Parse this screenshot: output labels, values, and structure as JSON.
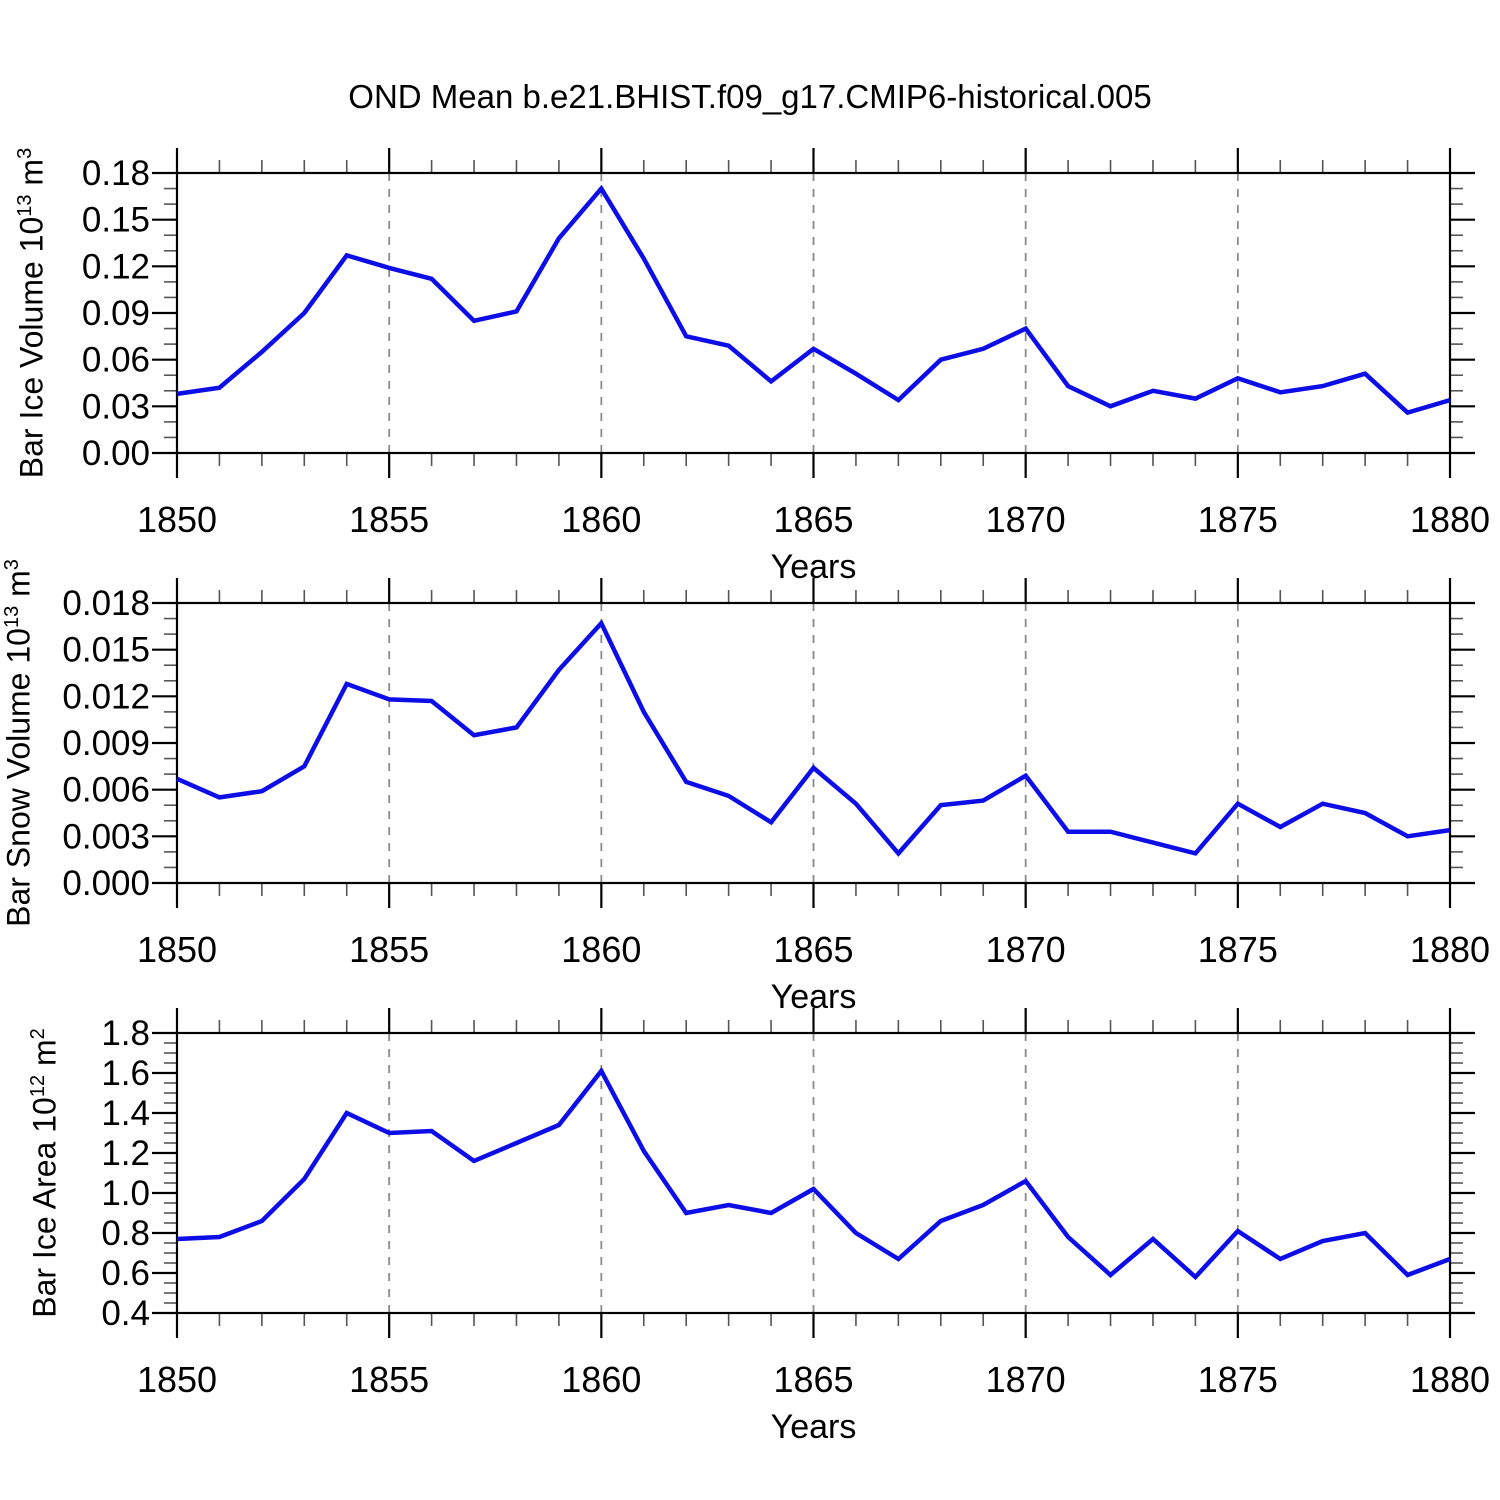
{
  "title": "OND Mean b.e21.BHIST.f09_g17.CMIP6-historical.005",
  "panels": [
    {
      "id": "ice-volume",
      "ylabel_prefix": "Bar Ice Volume 10",
      "ylabel_exp": "13",
      "ylabel_unit": " m",
      "ylabel_unit_exp": "3",
      "xlabel": "Years"
    },
    {
      "id": "snow-volume",
      "ylabel_prefix": "Bar Snow Volume 10",
      "ylabel_exp": "13",
      "ylabel_unit": " m",
      "ylabel_unit_exp": "3",
      "xlabel": "Years"
    },
    {
      "id": "ice-area",
      "ylabel_prefix": "Bar Ice Area 10",
      "ylabel_exp": "12",
      "ylabel_unit": " m",
      "ylabel_unit_exp": "2",
      "xlabel": "Years"
    }
  ],
  "colors": {
    "line": "#0d0de8",
    "grid": "#8a8a8a",
    "frame": "#000000",
    "major_tick": "#000000",
    "minor_tick": "#555555",
    "text": "#000000",
    "background": "#ffffff"
  },
  "chart_data": [
    {
      "type": "line",
      "id": "ice-volume",
      "ylabel": "Bar Ice Volume 10^13 m^3",
      "xlabel": "Years",
      "x_start": 1850,
      "x_end": 1880,
      "x_step": 1,
      "x_tick_years": [
        1850,
        1855,
        1860,
        1865,
        1870,
        1875,
        1880
      ],
      "x_tick_labels": [
        "1850",
        "1855",
        "1860",
        "1865",
        "1870",
        "1875",
        "1880"
      ],
      "grid_years": [
        1855,
        1860,
        1865,
        1870,
        1875
      ],
      "ylim": [
        0.0,
        0.18
      ],
      "y_tick_values": [
        0.0,
        0.03,
        0.06,
        0.09,
        0.12,
        0.15,
        0.18
      ],
      "y_tick_labels": [
        "0.00",
        "0.03",
        "0.06",
        "0.09",
        "0.12",
        "0.15",
        "0.18"
      ],
      "y_major_step": 0.03,
      "y_minor_step": 0.01,
      "values": [
        0.038,
        0.042,
        0.065,
        0.09,
        0.127,
        0.119,
        0.112,
        0.085,
        0.091,
        0.138,
        0.17,
        0.125,
        0.075,
        0.069,
        0.046,
        0.067,
        0.051,
        0.034,
        0.06,
        0.067,
        0.08,
        0.043,
        0.03,
        0.04,
        0.035,
        0.048,
        0.039,
        0.043,
        0.051,
        0.026,
        0.034
      ]
    },
    {
      "type": "line",
      "id": "snow-volume",
      "ylabel": "Bar Snow Volume 10^13 m^3",
      "xlabel": "Years",
      "x_start": 1850,
      "x_end": 1880,
      "x_step": 1,
      "x_tick_years": [
        1850,
        1855,
        1860,
        1865,
        1870,
        1875,
        1880
      ],
      "x_tick_labels": [
        "1850",
        "1855",
        "1860",
        "1865",
        "1870",
        "1875",
        "1880"
      ],
      "grid_years": [
        1855,
        1860,
        1865,
        1870,
        1875
      ],
      "ylim": [
        0.0,
        0.018
      ],
      "y_tick_values": [
        0.0,
        0.003,
        0.006,
        0.009,
        0.012,
        0.015,
        0.018
      ],
      "y_tick_labels": [
        "0.000",
        "0.003",
        "0.006",
        "0.009",
        "0.012",
        "0.015",
        "0.018"
      ],
      "y_major_step": 0.003,
      "y_minor_step": 0.001,
      "values": [
        0.0067,
        0.0055,
        0.0059,
        0.0075,
        0.0128,
        0.0118,
        0.0117,
        0.0095,
        0.01,
        0.0137,
        0.0167,
        0.011,
        0.0065,
        0.0056,
        0.0039,
        0.0074,
        0.0051,
        0.0019,
        0.005,
        0.0053,
        0.0069,
        0.0033,
        0.0033,
        0.0026,
        0.0019,
        0.0051,
        0.0036,
        0.0051,
        0.0045,
        0.003,
        0.0034
      ]
    },
    {
      "type": "line",
      "id": "ice-area",
      "ylabel": "Bar Ice Area 10^12 m^2",
      "xlabel": "Years",
      "x_start": 1850,
      "x_end": 1880,
      "x_step": 1,
      "x_tick_years": [
        1850,
        1855,
        1860,
        1865,
        1870,
        1875,
        1880
      ],
      "x_tick_labels": [
        "1850",
        "1855",
        "1860",
        "1865",
        "1870",
        "1875",
        "1880"
      ],
      "grid_years": [
        1855,
        1860,
        1865,
        1870,
        1875
      ],
      "ylim": [
        0.4,
        1.8
      ],
      "y_tick_values": [
        0.4,
        0.6,
        0.8,
        1.0,
        1.2,
        1.4,
        1.6,
        1.8
      ],
      "y_tick_labels": [
        "0.4",
        "0.6",
        "0.8",
        "1.0",
        "1.2",
        "1.4",
        "1.6",
        "1.8"
      ],
      "y_major_step": 0.2,
      "y_minor_step": 0.05,
      "values": [
        0.77,
        0.78,
        0.86,
        1.07,
        1.4,
        1.3,
        1.31,
        1.16,
        1.25,
        1.34,
        1.61,
        1.21,
        0.9,
        0.94,
        0.9,
        1.02,
        0.8,
        0.67,
        0.86,
        0.94,
        1.06,
        0.78,
        0.59,
        0.77,
        0.58,
        0.81,
        0.67,
        0.76,
        0.8,
        0.59,
        0.67
      ]
    }
  ]
}
